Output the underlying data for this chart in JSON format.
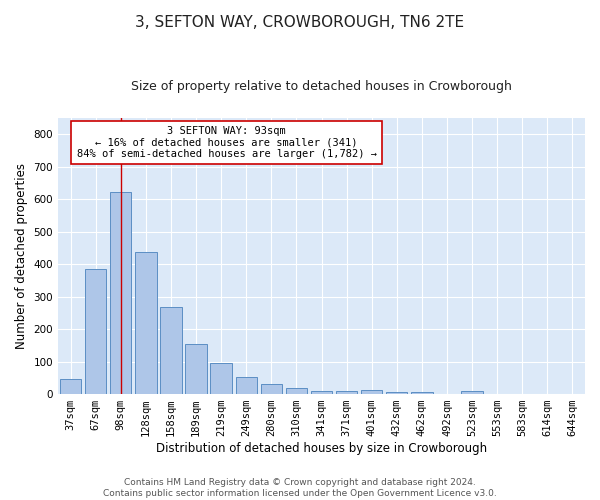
{
  "title": "3, SEFTON WAY, CROWBOROUGH, TN6 2TE",
  "subtitle": "Size of property relative to detached houses in Crowborough",
  "xlabel": "Distribution of detached houses by size in Crowborough",
  "ylabel": "Number of detached properties",
  "bar_labels": [
    "37sqm",
    "67sqm",
    "98sqm",
    "128sqm",
    "158sqm",
    "189sqm",
    "219sqm",
    "249sqm",
    "280sqm",
    "310sqm",
    "341sqm",
    "371sqm",
    "401sqm",
    "432sqm",
    "462sqm",
    "492sqm",
    "523sqm",
    "553sqm",
    "583sqm",
    "614sqm",
    "644sqm"
  ],
  "bar_values": [
    47,
    385,
    622,
    438,
    267,
    153,
    96,
    54,
    30,
    18,
    10,
    11,
    12,
    7,
    5,
    0,
    8,
    0,
    0,
    0,
    0
  ],
  "bar_color": "#aec6e8",
  "bar_edge_color": "#5b8ec4",
  "property_line_x": 2,
  "property_line_color": "#cc0000",
  "annotation_text": "3 SEFTON WAY: 93sqm\n← 16% of detached houses are smaller (341)\n84% of semi-detached houses are larger (1,782) →",
  "annotation_box_color": "#ffffff",
  "annotation_box_edge_color": "#cc0000",
  "ylim": [
    0,
    850
  ],
  "yticks": [
    0,
    100,
    200,
    300,
    400,
    500,
    600,
    700,
    800
  ],
  "background_color": "#dce9f8",
  "footer_line1": "Contains HM Land Registry data © Crown copyright and database right 2024.",
  "footer_line2": "Contains public sector information licensed under the Open Government Licence v3.0.",
  "title_fontsize": 11,
  "subtitle_fontsize": 9,
  "axis_label_fontsize": 8.5,
  "tick_fontsize": 7.5,
  "annotation_fontsize": 7.5,
  "footer_fontsize": 6.5
}
